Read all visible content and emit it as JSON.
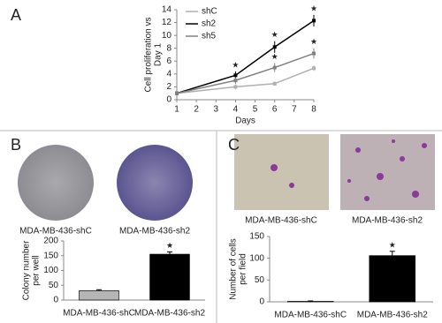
{
  "chart_data": [
    {
      "type": "line",
      "panel": "A",
      "ylabel": [
        "Cell proliferation vs",
        "Day 1"
      ],
      "xlabel": "Days",
      "x": [
        1,
        4,
        6,
        8
      ],
      "xlim": [
        1,
        8
      ],
      "xticks": [
        1,
        2,
        3,
        4,
        5,
        6,
        7,
        8
      ],
      "ylim": [
        0,
        14
      ],
      "yticks": [
        0,
        2,
        4,
        6,
        8,
        10,
        12,
        14
      ],
      "grid": false,
      "legend": "top-left",
      "series": [
        {
          "name": "shC",
          "color": "#b0b0b0",
          "values": [
            1,
            2.0,
            2.5,
            4.9
          ],
          "errors": [
            0,
            0.4,
            0.3,
            0.4
          ],
          "significance": [
            null,
            null,
            null,
            null
          ]
        },
        {
          "name": "sh2",
          "color": "#000000",
          "values": [
            1,
            3.8,
            8.2,
            12.3
          ],
          "errors": [
            0,
            0.6,
            0.9,
            0.9
          ],
          "significance": [
            null,
            "★",
            "★",
            "★"
          ]
        },
        {
          "name": "sh5",
          "color": "#808080",
          "values": [
            1,
            3.0,
            5.0,
            7.2
          ],
          "errors": [
            0,
            0.5,
            0.7,
            0.8
          ],
          "significance": [
            null,
            null,
            "★",
            "★"
          ]
        }
      ]
    },
    {
      "type": "bar",
      "panel": "B",
      "image_captions": [
        "MDA-MB-436-shC",
        "MDA-MB-436-sh2"
      ],
      "ylabel": [
        "Colony number",
        "per well"
      ],
      "categories": [
        "MDA-MB-436-shC",
        "MDA-MB-436-sh2"
      ],
      "values": [
        32,
        155
      ],
      "errors": [
        3,
        8
      ],
      "significance": [
        null,
        "★"
      ],
      "colors": [
        "#b5b5b5",
        "#000000"
      ],
      "ylim": [
        0,
        200
      ],
      "yticks": [
        0,
        50,
        100,
        150,
        200
      ]
    },
    {
      "type": "bar",
      "panel": "C",
      "image_captions": [
        "MDA-MB-436-shC",
        "MDA-MB-436-sh2"
      ],
      "ylabel": [
        "Number of cells",
        "per field"
      ],
      "categories": [
        "MDA-MB-436-shC",
        "MDA-MB-436-sh2"
      ],
      "values": [
        1,
        106
      ],
      "errors": [
        1,
        10
      ],
      "significance": [
        null,
        "★"
      ],
      "colors": [
        "#b5b5b5",
        "#000000"
      ],
      "ylim": [
        0,
        150
      ],
      "yticks": [
        0,
        50,
        100,
        150
      ]
    }
  ]
}
